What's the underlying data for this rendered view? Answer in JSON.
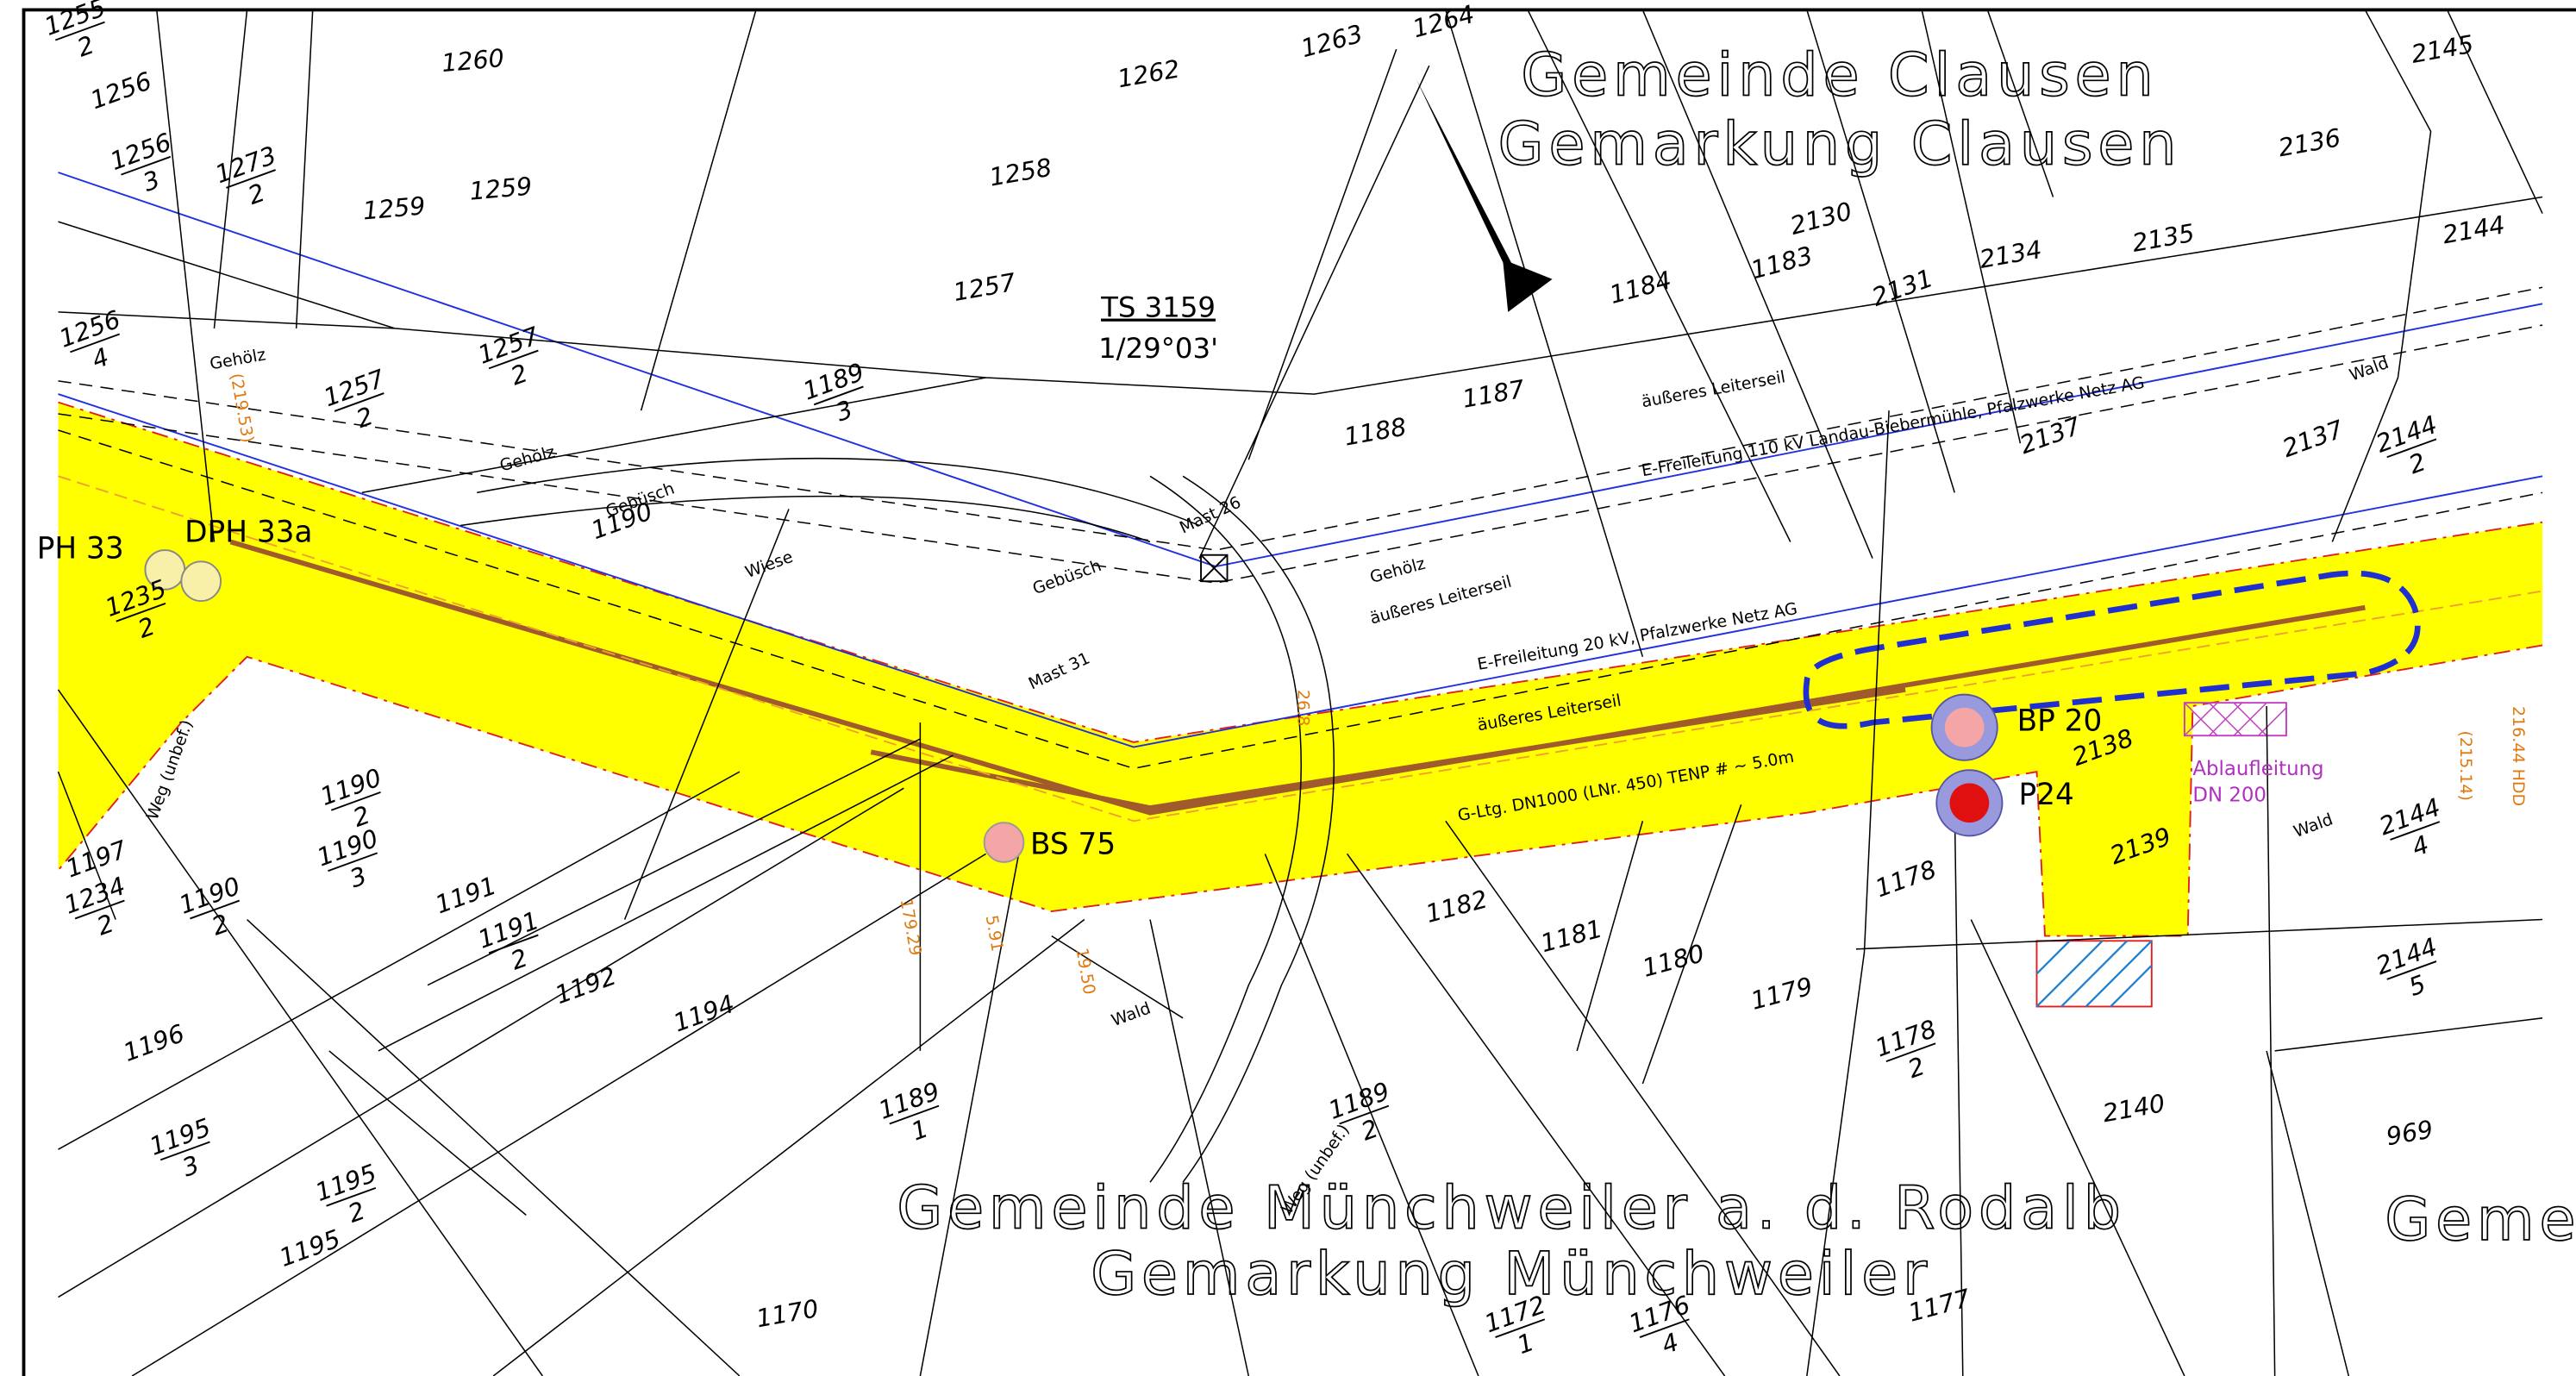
{
  "municipalities": {
    "north_1": "Gemeinde Clausen",
    "north_2": "Gemarkung Clausen",
    "south_1": "Gemeinde Münchweiler a. d. Rodalb",
    "south_2": "Gemarkung Münchweiler",
    "east_1": "Geme"
  },
  "survey_point": {
    "name": "TS 3159",
    "coord": "1/29°03'"
  },
  "stations": [
    "PH 33",
    "DPH 33a",
    "BS 75",
    "BP 20",
    "P24"
  ],
  "parcels": [
    "1260",
    "1262",
    "1263",
    "1264",
    "1258",
    "1259",
    "1259",
    "1257",
    "1256",
    "1184",
    "1183",
    "2130",
    "2131",
    "2134",
    "2135",
    "2136",
    "2145",
    "2144",
    "1187",
    "1188",
    "1190",
    "1191",
    "1192",
    "1194",
    "1196",
    "1197",
    "1195",
    "1170",
    "1177",
    "1179",
    "1180",
    "1181",
    "1182",
    "1178",
    "2140",
    "969",
    "2139",
    "2138",
    "2137",
    "2137"
  ],
  "fractions": [
    [
      "1255",
      "2"
    ],
    [
      "1256",
      "3"
    ],
    [
      "1273",
      "2"
    ],
    [
      "1256",
      "4"
    ],
    [
      "1257",
      "2"
    ],
    [
      "1257",
      "2"
    ],
    [
      "1189",
      "3"
    ],
    [
      "1235",
      "2"
    ],
    [
      "1190",
      "2"
    ],
    [
      "1190",
      "3"
    ],
    [
      "1191",
      "2"
    ],
    [
      "1234",
      "2"
    ],
    [
      "1190",
      "2"
    ],
    [
      "1195",
      "3"
    ],
    [
      "1195",
      "2"
    ],
    [
      "1189",
      "1"
    ],
    [
      "1189",
      "2"
    ],
    [
      "1178",
      "2"
    ],
    [
      "1172",
      "1"
    ],
    [
      "1176",
      "4"
    ],
    [
      "2144",
      "4"
    ],
    [
      "2144",
      "5"
    ],
    [
      "2144",
      "2"
    ]
  ],
  "annotations": [
    "Gehölz",
    "Gehölz",
    "Gebüsch",
    "Wiese",
    "Gebüsch",
    "Mast 26",
    "Mast 31",
    "Gehölz",
    "äußeres Leiterseil",
    "E-Freileitung 110 kV Landau-Biebermühle, Pfalzwerke Netz AG",
    "äußeres Leiterseil",
    "E-Freileitung 20 kV, Pfalzwerke Netz AG",
    "äußeres Leiterseil",
    "G-Ltg. DN1000 (LNr. 450) TENP # ~ 5.0m",
    "Wald",
    "Wald",
    "Wald",
    "Weg (unbef.)",
    "Weg (unbef.)",
    "Ablaufleitung",
    "DN 200"
  ],
  "measurements": [
    "179.29",
    "5.91",
    "19.50",
    "26.8",
    "216.44 HDD",
    "(219.53)",
    "(215.14)"
  ]
}
